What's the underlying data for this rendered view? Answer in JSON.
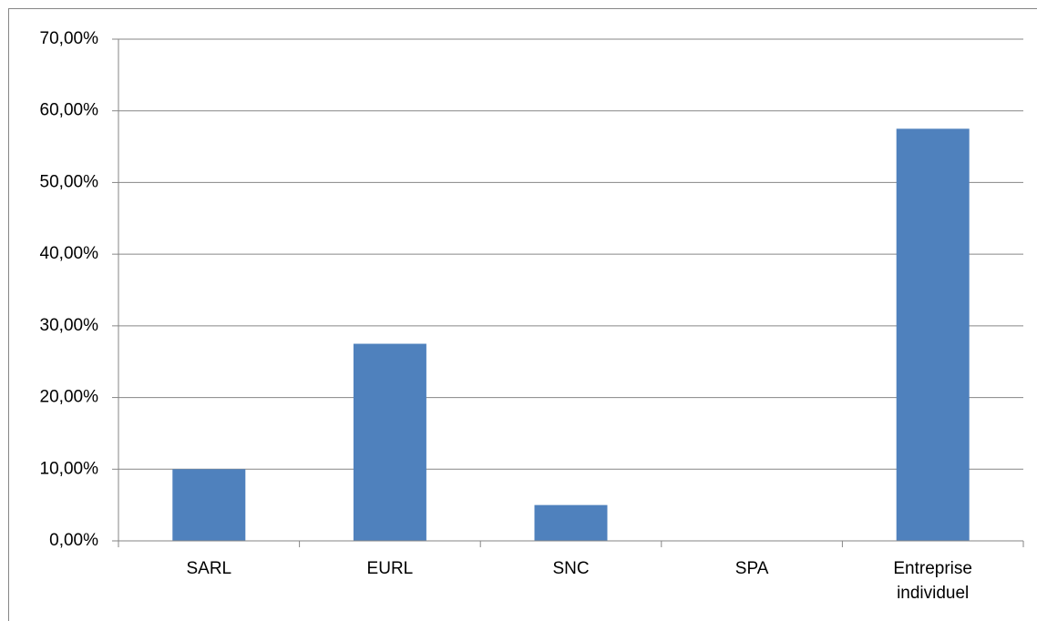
{
  "chart_data": {
    "type": "bar",
    "categories": [
      "SARL",
      "EURL",
      "SNC",
      "SPA",
      "Entreprise individuel"
    ],
    "values": [
      10,
      27.5,
      5,
      0,
      57.5
    ],
    "color": "#4f81bd",
    "ylim": [
      0,
      70
    ],
    "yticks": [
      {
        "value": 0,
        "label": "0,00%"
      },
      {
        "value": 10,
        "label": "10,00%"
      },
      {
        "value": 20,
        "label": "20,00%"
      },
      {
        "value": 30,
        "label": "30,00%"
      },
      {
        "value": 40,
        "label": "40,00%"
      },
      {
        "value": 50,
        "label": "50,00%"
      },
      {
        "value": 60,
        "label": "60,00%"
      },
      {
        "value": 70,
        "label": "70,00%"
      }
    ],
    "grid": true
  }
}
